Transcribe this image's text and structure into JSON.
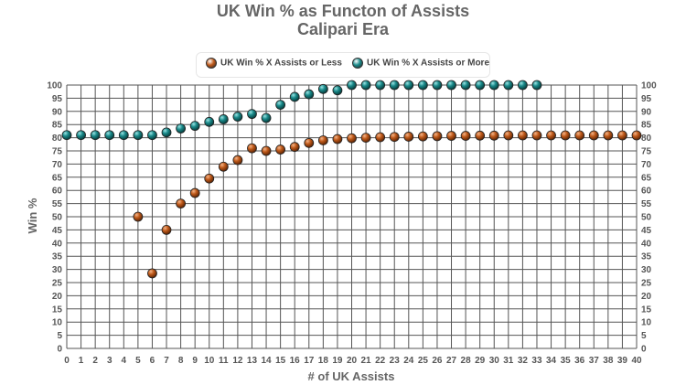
{
  "chart_data": {
    "type": "scatter",
    "title": "UK Win % as Functon of Assists",
    "subtitle": "Calipari Era",
    "xlabel": "# of UK Assists",
    "ylabel": "Win %",
    "xlim": [
      0,
      40
    ],
    "ylim": [
      0,
      100
    ],
    "x_ticks": [
      0,
      1,
      2,
      3,
      4,
      5,
      6,
      7,
      8,
      9,
      10,
      11,
      12,
      13,
      14,
      15,
      16,
      17,
      18,
      19,
      20,
      21,
      22,
      23,
      24,
      25,
      26,
      27,
      28,
      29,
      30,
      31,
      32,
      33,
      34,
      35,
      36,
      37,
      38,
      39,
      40
    ],
    "y_ticks": [
      0,
      5,
      10,
      15,
      20,
      25,
      30,
      35,
      40,
      45,
      50,
      55,
      60,
      65,
      70,
      75,
      80,
      85,
      90,
      95,
      100
    ],
    "grid": true,
    "legend_position": "top-center",
    "series": [
      {
        "name": "UK Win % X Assists or Less",
        "color": "#c05a1a",
        "points": [
          [
            5,
            50
          ],
          [
            6,
            28.5
          ],
          [
            7,
            45
          ],
          [
            8,
            55
          ],
          [
            9,
            59
          ],
          [
            10,
            64.5
          ],
          [
            11,
            69
          ],
          [
            12,
            71.5
          ],
          [
            13,
            76
          ],
          [
            14,
            75
          ],
          [
            15,
            75.5
          ],
          [
            16,
            76.5
          ],
          [
            17,
            78
          ],
          [
            18,
            79
          ],
          [
            19,
            79.5
          ],
          [
            20,
            79.8
          ],
          [
            21,
            80
          ],
          [
            22,
            80.2
          ],
          [
            23,
            80.3
          ],
          [
            24,
            80.4
          ],
          [
            25,
            80.5
          ],
          [
            26,
            80.6
          ],
          [
            27,
            80.7
          ],
          [
            28,
            80.7
          ],
          [
            29,
            80.8
          ],
          [
            30,
            80.8
          ],
          [
            31,
            80.9
          ],
          [
            32,
            80.9
          ],
          [
            33,
            80.9
          ],
          [
            34,
            80.9
          ],
          [
            35,
            80.9
          ],
          [
            36,
            80.9
          ],
          [
            37,
            80.9
          ],
          [
            38,
            80.9
          ],
          [
            39,
            80.9
          ],
          [
            40,
            80.9
          ]
        ]
      },
      {
        "name": "UK Win % X Assists or More",
        "color": "#1a8a8a",
        "points": [
          [
            0,
            81
          ],
          [
            1,
            81
          ],
          [
            2,
            81
          ],
          [
            3,
            81
          ],
          [
            4,
            81
          ],
          [
            5,
            81
          ],
          [
            6,
            81
          ],
          [
            7,
            82
          ],
          [
            8,
            83.5
          ],
          [
            9,
            84.5
          ],
          [
            10,
            86
          ],
          [
            11,
            87
          ],
          [
            12,
            88
          ],
          [
            13,
            89
          ],
          [
            14,
            87.5
          ],
          [
            15,
            92.5
          ],
          [
            16,
            95.5
          ],
          [
            17,
            96.5
          ],
          [
            18,
            98.5
          ],
          [
            19,
            98
          ],
          [
            20,
            100
          ],
          [
            21,
            100
          ],
          [
            22,
            100
          ],
          [
            23,
            100
          ],
          [
            24,
            100
          ],
          [
            25,
            100
          ],
          [
            26,
            100
          ],
          [
            27,
            100
          ],
          [
            28,
            100
          ],
          [
            29,
            100
          ],
          [
            30,
            100
          ],
          [
            31,
            100
          ],
          [
            32,
            100
          ],
          [
            33,
            100
          ]
        ]
      }
    ]
  }
}
